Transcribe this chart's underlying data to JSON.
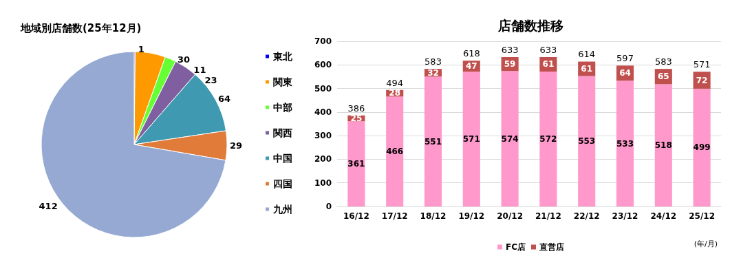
{
  "chart_data": [
    {
      "type": "pie",
      "title": "地域別店舗数(25年12月)",
      "categories": [
        "東北",
        "関東",
        "中部",
        "関西",
        "中国",
        "四国",
        "九州"
      ],
      "values": [
        1,
        30,
        11,
        23,
        64,
        29,
        412
      ],
      "colors": [
        "#0000ff",
        "#ff9900",
        "#66ff33",
        "#7f5f9f",
        "#3f99b0",
        "#e07b39",
        "#95a9d2"
      ],
      "data_labels": true,
      "legend": "right"
    },
    {
      "type": "bar",
      "title": "店舗数推移",
      "categories": [
        "16/12",
        "17/12",
        "18/12",
        "19/12",
        "20/12",
        "21/12",
        "22/12",
        "23/12",
        "24/12",
        "25/12"
      ],
      "stacked": true,
      "series": [
        {
          "name": "FC店",
          "color": "#ff99cc",
          "values": [
            361,
            466,
            551,
            571,
            574,
            572,
            553,
            533,
            518,
            499
          ]
        },
        {
          "name": "直営店",
          "color": "#c0504d",
          "values": [
            25,
            28,
            32,
            47,
            59,
            61,
            61,
            64,
            65,
            72
          ]
        }
      ],
      "totals": [
        "386",
        "494",
        "583",
        "618",
        "633",
        "633",
        "614",
        "597",
        "583",
        "571"
      ],
      "ylim": [
        0,
        700
      ],
      "yticks": [
        0,
        100,
        200,
        300,
        400,
        500,
        600,
        700
      ],
      "grid": "y",
      "data_labels": true,
      "legend": "bottom",
      "annotations": [
        "(年/月)"
      ]
    }
  ]
}
